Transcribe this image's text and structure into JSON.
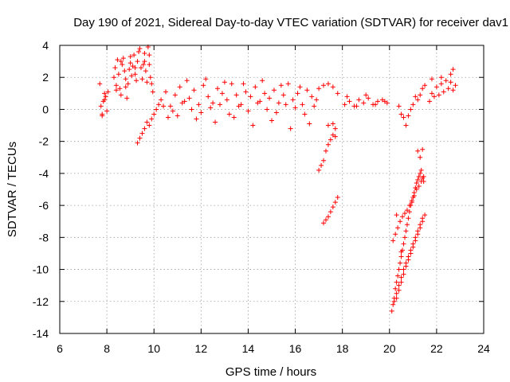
{
  "chart_data": {
    "type": "scatter",
    "title": "Day 190 of 2021, Sidereal Day-to-day VTEC variation (SDTVAR) for receiver dav1",
    "xlabel": "GPS time / hours",
    "ylabel": "SDTVAR / TECUs",
    "xlim": [
      6,
      24
    ],
    "ylim": [
      -14,
      4
    ],
    "xticks": [
      "6",
      "8",
      "10",
      "12",
      "14",
      "16",
      "18",
      "20",
      "22",
      "24"
    ],
    "yticks": [
      "4",
      "2",
      "0",
      "-2",
      "-4",
      "-6",
      "-8",
      "-10",
      "-12",
      "-14"
    ],
    "grid": true,
    "marker": "+",
    "color": "#ff0000",
    "series": [
      {
        "name": "SDTVAR",
        "x": [
          7.7,
          7.75,
          7.8,
          7.85,
          7.9,
          7.95,
          8.0,
          8.05,
          7.8,
          7.9,
          8.3,
          8.35,
          8.4,
          8.45,
          8.5,
          8.55,
          8.6,
          8.65,
          8.7,
          8.75,
          8.8,
          8.85,
          8.9,
          8.95,
          9.0,
          9.05,
          9.1,
          9.15,
          9.2,
          9.25,
          9.3,
          9.35,
          9.4,
          9.45,
          9.5,
          9.55,
          9.6,
          9.65,
          9.7,
          9.75,
          9.8,
          9.85,
          9.9,
          9.95,
          8.4,
          8.6,
          8.8,
          9.0,
          9.2,
          9.6,
          9.8,
          9.3,
          9.4,
          9.5,
          9.6,
          9.7,
          9.8,
          9.9,
          10.0,
          10.1,
          10.2,
          10.3,
          10.5,
          10.7,
          10.9,
          11.1,
          11.3,
          11.5,
          11.7,
          11.9,
          12.1,
          12.3,
          12.5,
          12.7,
          12.9,
          13.1,
          13.3,
          13.5,
          13.7,
          13.9,
          14.1,
          14.3,
          14.5,
          14.7,
          14.9,
          15.1,
          15.3,
          15.5,
          15.7,
          15.9,
          16.1,
          16.3,
          16.5,
          16.7,
          16.9,
          10.4,
          10.8,
          11.2,
          11.6,
          12.0,
          12.4,
          12.8,
          13.2,
          13.6,
          14.0,
          14.4,
          14.8,
          15.2,
          15.6,
          16.0,
          16.4,
          16.8,
          11.4,
          12.2,
          13.0,
          13.8,
          14.6,
          15.4,
          16.2,
          10.6,
          11.0,
          11.8,
          12.6,
          13.4,
          14.2,
          15.0,
          15.8,
          16.6,
          17.0,
          17.2,
          17.4,
          17.6,
          17.8,
          17.0,
          17.1,
          17.2,
          17.3,
          17.4,
          17.5,
          17.6,
          17.7,
          17.2,
          17.3,
          17.4,
          17.5,
          17.6,
          17.7,
          17.8,
          17.4,
          17.6,
          17.7,
          18.1,
          18.3,
          18.5,
          18.7,
          18.9,
          19.1,
          19.3,
          19.5,
          19.7,
          19.9,
          18.2,
          18.6,
          19.0,
          19.4,
          19.8,
          20.4,
          20.5,
          20.6,
          20.7,
          20.8,
          20.9,
          21.0,
          21.1,
          21.2,
          21.3,
          21.4,
          21.5,
          21.7,
          21.8,
          21.9,
          22.0,
          22.1,
          22.2,
          22.3,
          22.4,
          22.5,
          22.6,
          22.7,
          22.8,
          21.8,
          22.2,
          22.6,
          22.7,
          20.1,
          20.15,
          20.2,
          20.25,
          20.3,
          20.35,
          20.4,
          20.45,
          20.5,
          20.55,
          20.6,
          20.65,
          20.7,
          20.75,
          20.8,
          20.85,
          20.9,
          20.95,
          21.0,
          21.05,
          21.1,
          21.15,
          21.2,
          21.25,
          21.3,
          21.35,
          21.4,
          21.45,
          20.2,
          20.3,
          20.4,
          20.5,
          20.6,
          20.7,
          20.8,
          20.9,
          21.0,
          21.1,
          21.2,
          21.3,
          21.4,
          20.3,
          20.4,
          20.5,
          20.6,
          20.7,
          20.8,
          20.9,
          21.0,
          21.1,
          21.2,
          21.3,
          21.4,
          21.5,
          20.15,
          20.25,
          20.35,
          20.45,
          20.55,
          20.65,
          20.75,
          20.85,
          20.95,
          21.05,
          21.15,
          21.25,
          21.35,
          21.45,
          21.2,
          21.3,
          21.4,
          20.3,
          20.5
        ],
        "y": [
          1.6,
          0.2,
          -0.3,
          0.5,
          1.0,
          0.8,
          -0.1,
          1.1,
          -0.4,
          0.6,
          2.0,
          2.6,
          1.5,
          3.1,
          2.2,
          1.3,
          0.9,
          2.8,
          3.2,
          2.4,
          1.9,
          0.7,
          1.6,
          2.5,
          2.9,
          2.1,
          2.7,
          3.4,
          2.2,
          1.8,
          3.0,
          3.6,
          3.8,
          2.6,
          1.9,
          2.8,
          3.5,
          2.4,
          1.7,
          3.9,
          2.8,
          2.0,
          1.6,
          1.1,
          1.2,
          3.0,
          1.4,
          3.3,
          2.6,
          3.0,
          3.4,
          -2.1,
          -1.8,
          -1.5,
          -1.2,
          -0.8,
          -1.0,
          -0.6,
          -0.3,
          0.0,
          0.3,
          0.6,
          1.1,
          0.2,
          0.9,
          1.4,
          0.5,
          0.7,
          1.2,
          0.3,
          1.5,
          0.8,
          0.4,
          1.3,
          1.0,
          0.6,
          1.6,
          0.9,
          0.3,
          1.1,
          0.8,
          1.4,
          0.5,
          1.0,
          0.7,
          1.2,
          0.4,
          0.9,
          1.6,
          0.6,
          1.0,
          0.3,
          1.2,
          0.8,
          0.6,
          0.2,
          -0.1,
          0.4,
          0.0,
          -0.2,
          0.1,
          0.3,
          -0.3,
          0.2,
          -0.1,
          0.4,
          0.0,
          -0.2,
          0.3,
          0.1,
          -0.3,
          0.2,
          1.8,
          1.9,
          1.7,
          1.6,
          1.8,
          1.5,
          1.4,
          -0.5,
          -0.4,
          -0.6,
          -0.8,
          -0.5,
          -1.0,
          -0.7,
          -1.2,
          -0.9,
          1.3,
          1.5,
          1.6,
          1.4,
          1.0,
          -3.8,
          -3.5,
          -3.2,
          -2.6,
          -2.2,
          -1.9,
          -1.6,
          -1.2,
          -7.1,
          -6.9,
          -6.7,
          -6.4,
          -6.1,
          -5.8,
          -5.5,
          -1.0,
          -0.9,
          -1.7,
          0.3,
          0.5,
          0.2,
          0.6,
          0.4,
          0.7,
          0.3,
          0.5,
          0.6,
          0.4,
          0.8,
          0.2,
          0.9,
          0.3,
          0.5,
          0.2,
          -0.3,
          -0.5,
          -1.0,
          -0.4,
          0.0,
          0.3,
          0.8,
          0.6,
          0.9,
          1.3,
          1.5,
          0.5,
          1.0,
          0.8,
          1.4,
          0.9,
          1.6,
          1.1,
          1.8,
          1.3,
          1.7,
          1.2,
          1.5,
          1.9,
          2.0,
          2.2,
          2.5,
          -12.6,
          -12.2,
          -11.8,
          -11.2,
          -10.8,
          -10.4,
          -10.0,
          -9.6,
          -9.2,
          -8.8,
          -8.4,
          -8.0,
          -7.6,
          -7.2,
          -6.8,
          -6.4,
          -6.0,
          -5.8,
          -5.5,
          -5.2,
          -4.9,
          -4.6,
          -4.4,
          -4.2,
          -4.0,
          -3.8,
          -4.3,
          -4.5,
          -12.0,
          -11.5,
          -11.0,
          -10.5,
          -10.0,
          -9.6,
          -9.2,
          -8.8,
          -8.4,
          -8.0,
          -7.6,
          -7.2,
          -6.8,
          -11.8,
          -11.3,
          -10.8,
          -10.3,
          -9.8,
          -9.4,
          -9.0,
          -8.6,
          -8.2,
          -7.8,
          -7.4,
          -7.0,
          -6.6,
          -8.2,
          -7.8,
          -7.4,
          -7.0,
          -6.7,
          -6.5,
          -6.3,
          -6.0,
          -5.7,
          -5.4,
          -5.0,
          -4.8,
          -4.5,
          -4.2,
          -2.6,
          -3.0,
          -2.5,
          -6.6,
          -8.9
        ]
      }
    ]
  }
}
